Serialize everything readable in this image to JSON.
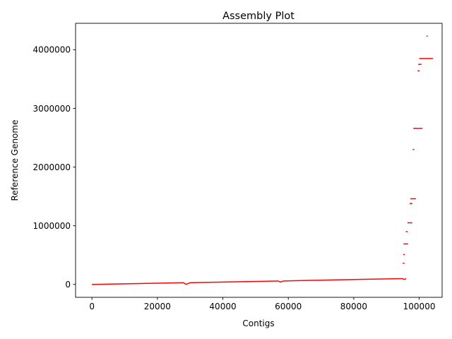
{
  "chart_data": {
    "type": "line",
    "title": "Assembly Plot",
    "xlabel": "Contigs",
    "ylabel": "Reference Genome",
    "xlim": [
      -5000,
      107000
    ],
    "ylim": [
      -220000,
      4450000
    ],
    "x_ticks": [
      0,
      20000,
      40000,
      60000,
      80000,
      100000
    ],
    "x_tick_labels": [
      "0",
      "20000",
      "40000",
      "60000",
      "80000",
      "100000"
    ],
    "y_ticks": [
      0,
      1000000,
      2000000,
      3000000,
      4000000
    ],
    "y_tick_labels": [
      "0",
      "1000000",
      "2000000",
      "3000000",
      "4000000"
    ],
    "grid": false,
    "series_color": "#ff0000",
    "series": [
      {
        "segments": [
          {
            "x": [
              0,
              28000
            ],
            "y": [
              0,
              30000
            ]
          },
          {
            "x": [
              28000,
              28600,
              29300,
              30000
            ],
            "y": [
              30000,
              5000,
              10000,
              30000
            ]
          },
          {
            "x": [
              30000,
              57000
            ],
            "y": [
              30000,
              58000
            ]
          },
          {
            "x": [
              57000,
              57600,
              58400
            ],
            "y": [
              58000,
              40000,
              58000
            ]
          },
          {
            "x": [
              58400,
              64000
            ],
            "y": [
              58000,
              66000
            ]
          },
          {
            "x": [
              64000,
              94800
            ],
            "y": [
              66000,
              99000
            ]
          },
          {
            "x": [
              94800,
              95400,
              96000
            ],
            "y": [
              99000,
              85000,
              99000
            ]
          },
          {
            "x": [
              95000,
              95500
            ],
            "y": [
              360000,
              360000
            ]
          },
          {
            "x": [
              95100,
              95600
            ],
            "y": [
              510000,
              510000
            ]
          },
          {
            "x": [
              95200,
              96600
            ],
            "y": [
              690000,
              690000
            ]
          },
          {
            "x": [
              95900,
              96500
            ],
            "y": [
              900000,
              900000
            ]
          },
          {
            "x": [
              96400,
              97900
            ],
            "y": [
              1050000,
              1050000
            ]
          },
          {
            "x": [
              97100,
              97900
            ],
            "y": [
              1380000,
              1380000
            ]
          },
          {
            "x": [
              97300,
              99000
            ],
            "y": [
              1460000,
              1460000
            ]
          },
          {
            "x": [
              98000,
              98500
            ],
            "y": [
              2300000,
              2300000
            ]
          },
          {
            "x": [
              98200,
              101000
            ],
            "y": [
              2660000,
              2660000
            ]
          },
          {
            "x": [
              99500,
              100100
            ],
            "y": [
              3640000,
              3640000
            ]
          },
          {
            "x": [
              99700,
              100700
            ],
            "y": [
              3750000,
              3750000
            ]
          },
          {
            "x": [
              100000,
              104200
            ],
            "y": [
              3850000,
              3850000
            ]
          },
          {
            "x": [
              102200,
              102600
            ],
            "y": [
              4230000,
              4230000
            ]
          }
        ]
      }
    ]
  }
}
